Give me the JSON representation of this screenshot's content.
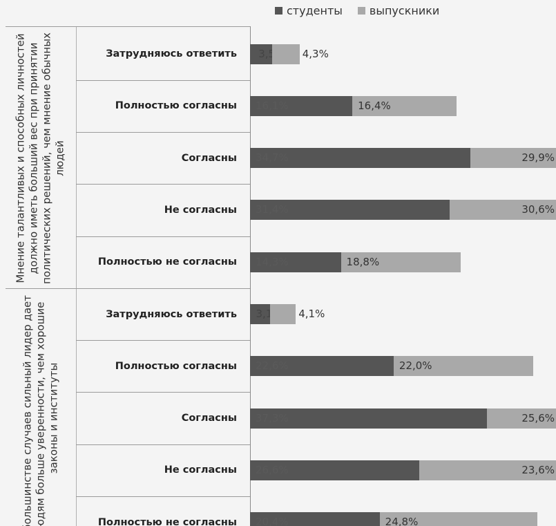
{
  "chart_data": {
    "type": "bar",
    "orientation": "horizontal",
    "stacked": true,
    "legend": {
      "position": "top-right",
      "entries": [
        "студенты",
        "выпускники"
      ]
    },
    "colors": {
      "студенты": "#555555",
      "выпускники": "#a9a9a9"
    },
    "groups": [
      {
        "label": "Мнение талантливых и способных личностей должно иметь больший вес при принятии политических решений, чем мнение обычных людей",
        "categories": [
          "Затрудняюсь ответить",
          "Полностью согласны",
          "Согласны",
          "Не согласны",
          "Полностью не согласны"
        ],
        "series": [
          {
            "name": "студенты",
            "values": [
              3.5,
              16.1,
              34.7,
              31.4,
              14.3
            ],
            "labels": [
              "3,5%",
              "16,1%",
              "34,7%",
              "31,4%",
              "14,3%"
            ]
          },
          {
            "name": "выпускники",
            "values": [
              4.3,
              16.4,
              29.9,
              30.6,
              18.8
            ],
            "labels": [
              "4,3%",
              "16,4%",
              "29,9%",
              "30,6%",
              "18,8%"
            ]
          }
        ]
      },
      {
        "label": "В большинстве случаев сильный лидер дает людям больше уверенности, чем хорошие законы и институты",
        "categories": [
          "Затрудняюсь ответить",
          "Полностью согласны",
          "Согласны",
          "Не согласны",
          "Полностью не согласны"
        ],
        "series": [
          {
            "name": "студенты",
            "values": [
              3.1,
              22.6,
              37.3,
              26.6,
              20.4
            ],
            "labels": [
              "3,1%",
              "22,6%",
              "37,3%",
              "26,6%",
              "20,4%"
            ]
          },
          {
            "name": "выпускники",
            "values": [
              4.1,
              22.0,
              25.6,
              23.6,
              24.8
            ],
            "labels": [
              "4,1%",
              "22,0%",
              "25,6%",
              "23,6%",
              "24,8%"
            ]
          }
        ]
      }
    ]
  }
}
